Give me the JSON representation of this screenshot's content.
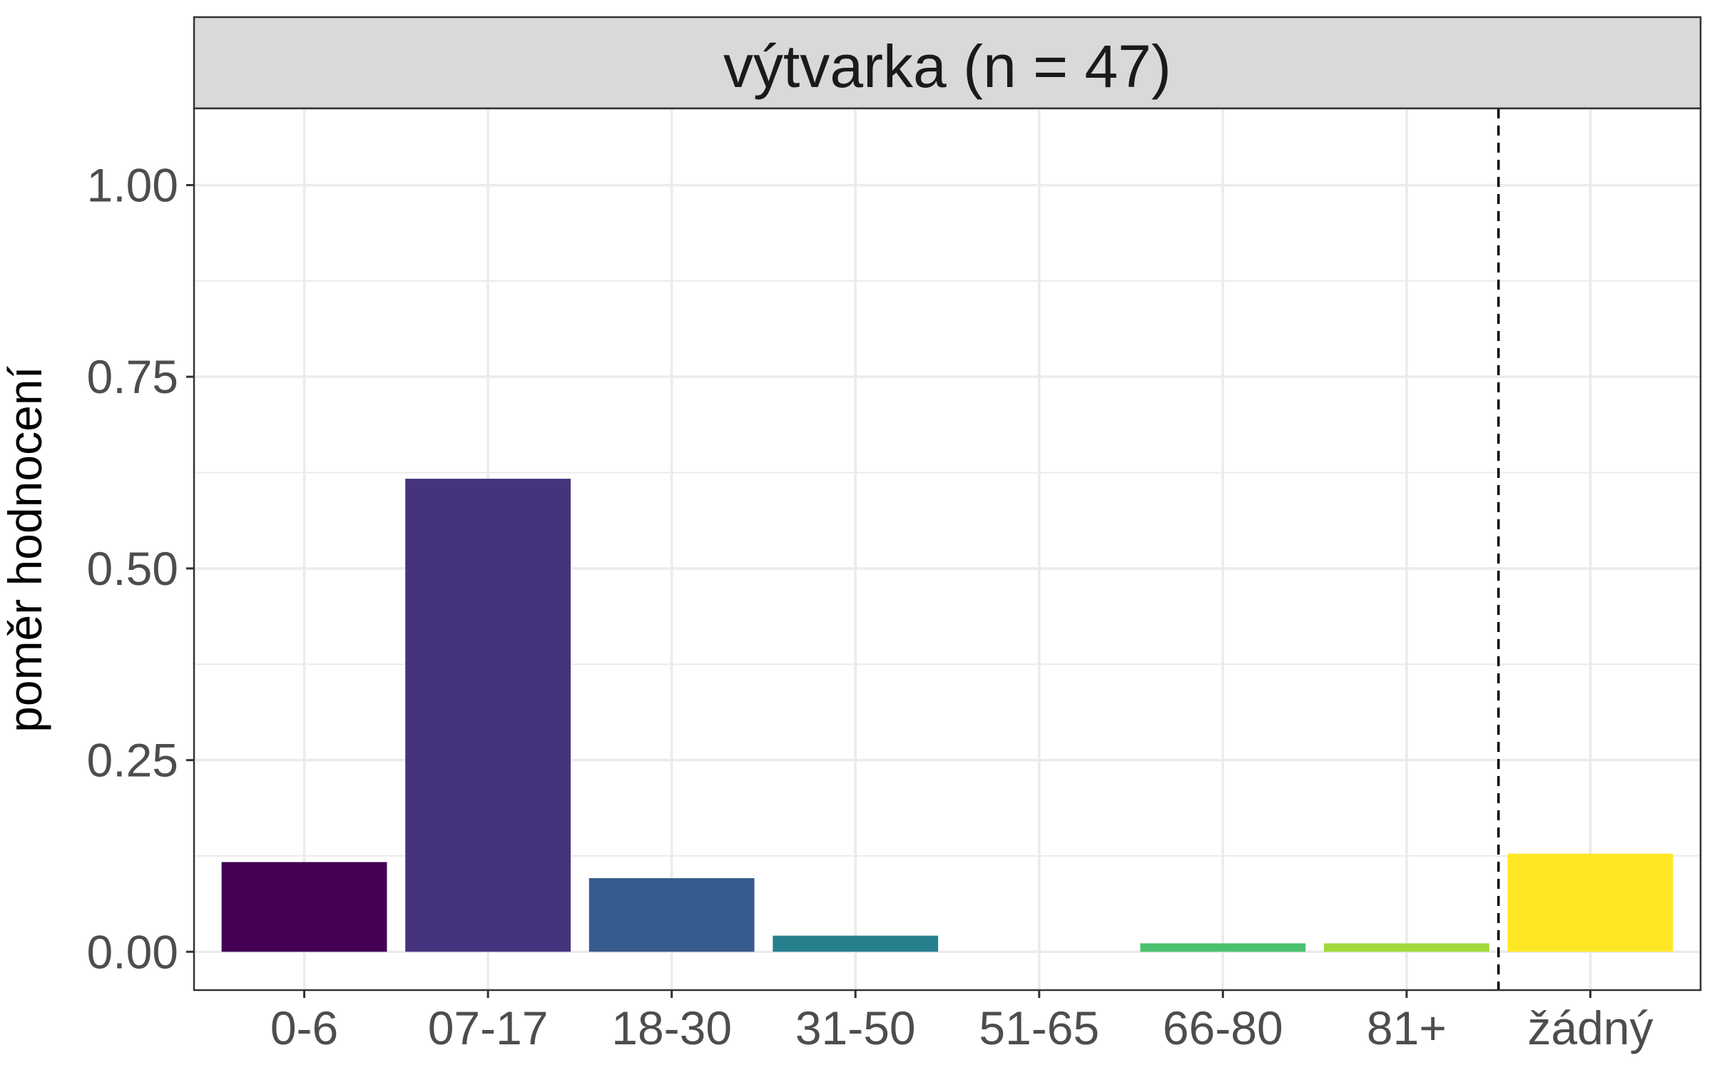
{
  "chart_data": {
    "type": "bar",
    "facet_title": "výtvarka (n = 47)",
    "ylabel": "poměr hodnocení",
    "xlabel": "",
    "ylim": [
      -0.05,
      1.1
    ],
    "yticks": [
      0.0,
      0.25,
      0.5,
      0.75,
      1.0
    ],
    "ytick_labels": [
      "0.00",
      "0.25",
      "0.50",
      "0.75",
      "1.00"
    ],
    "categories": [
      "0-6",
      "07-17",
      "18-30",
      "31-50",
      "51-65",
      "66-80",
      "81+",
      "žádný"
    ],
    "values": [
      0.117,
      0.617,
      0.096,
      0.021,
      0.0,
      0.011,
      0.011,
      0.128
    ],
    "colors": [
      "#440154",
      "#46337e",
      "#365c8d",
      "#277f8e",
      "#1fa187",
      "#4ac16d",
      "#9fda3a",
      "#fde725"
    ],
    "reference_line": {
      "between": [
        "81+",
        "žádný"
      ],
      "style": "dashed"
    },
    "grid": true
  }
}
